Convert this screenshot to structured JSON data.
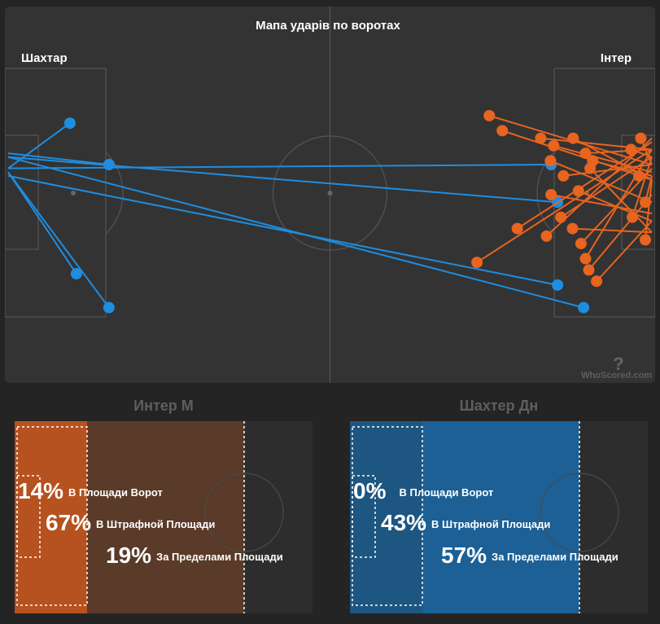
{
  "pitch": {
    "title": "Мапа ударів по воротах",
    "left_team": "Шахтар",
    "right_team": "Інтер",
    "watermark": "WhoScored.com"
  },
  "chart_data": {
    "type": "scatter",
    "title": "Мапа ударів по воротах",
    "series": [
      {
        "name": "Шахтар",
        "color": "#1f8de0",
        "shots": [
          {
            "x": 89,
            "y": 80,
            "tx": 0.5,
            "ty": 40
          },
          {
            "x": 85,
            "y": 74,
            "tx": 0.5,
            "ty": 45
          },
          {
            "x": 85,
            "y": 52,
            "tx": 0.5,
            "ty": 40
          },
          {
            "x": 84,
            "y": 42,
            "tx": 0.5,
            "ty": 43
          },
          {
            "x": 16,
            "y": 80,
            "tx": 0.5,
            "ty": 44
          },
          {
            "x": 16,
            "y": 42,
            "tx": 0.5,
            "ty": 39
          },
          {
            "x": 10,
            "y": 31,
            "tx": 0.5,
            "ty": 43
          },
          {
            "x": 11,
            "y": 71,
            "tx": 0.5,
            "ty": 44
          }
        ]
      },
      {
        "name": "Інтер",
        "color": "#e8641f",
        "shots": [
          {
            "x": 72.6,
            "y": 68,
            "tx": 99.5,
            "ty": 38
          },
          {
            "x": 83.3,
            "y": 61,
            "tx": 99.5,
            "ty": 35
          },
          {
            "x": 85.5,
            "y": 56,
            "tx": 99.5,
            "ty": 40
          },
          {
            "x": 89.8,
            "y": 70,
            "tx": 99.5,
            "ty": 50
          },
          {
            "x": 91.0,
            "y": 73,
            "tx": 99.5,
            "ty": 57
          },
          {
            "x": 89.3,
            "y": 67,
            "tx": 99.5,
            "ty": 38
          },
          {
            "x": 88.6,
            "y": 63,
            "tx": 99.5,
            "ty": 43
          },
          {
            "x": 87.3,
            "y": 59,
            "tx": 99.5,
            "ty": 60
          },
          {
            "x": 78.8,
            "y": 59,
            "tx": 99.5,
            "ty": 36
          },
          {
            "x": 84.0,
            "y": 50,
            "tx": 99.5,
            "ty": 55
          },
          {
            "x": 88.2,
            "y": 49,
            "tx": 99.5,
            "ty": 57
          },
          {
            "x": 85.9,
            "y": 45,
            "tx": 99.5,
            "ty": 42
          },
          {
            "x": 83.9,
            "y": 41,
            "tx": 99.5,
            "ty": 52
          },
          {
            "x": 90.0,
            "y": 43,
            "tx": 99.5,
            "ty": 60
          },
          {
            "x": 90.4,
            "y": 41,
            "tx": 99.5,
            "ty": 45
          },
          {
            "x": 89.3,
            "y": 39,
            "tx": 99.5,
            "ty": 38
          },
          {
            "x": 84.4,
            "y": 37,
            "tx": 99.5,
            "ty": 44
          },
          {
            "x": 82.4,
            "y": 35,
            "tx": 99.5,
            "ty": 38
          },
          {
            "x": 87.4,
            "y": 35,
            "tx": 99.5,
            "ty": 46
          },
          {
            "x": 96.3,
            "y": 38,
            "tx": 99.5,
            "ty": 40
          },
          {
            "x": 97.8,
            "y": 35,
            "tx": 99.5,
            "ty": 42
          },
          {
            "x": 97.5,
            "y": 45,
            "tx": 99.5,
            "ty": 46
          },
          {
            "x": 98.5,
            "y": 52,
            "tx": 99.5,
            "ty": 45
          },
          {
            "x": 96.5,
            "y": 56,
            "tx": 99.5,
            "ty": 40
          },
          {
            "x": 98.5,
            "y": 62,
            "tx": 99.5,
            "ty": 46
          },
          {
            "x": 76.5,
            "y": 33,
            "tx": 99.5,
            "ty": 46
          },
          {
            "x": 74.5,
            "y": 29,
            "tx": 99.5,
            "ty": 42
          }
        ]
      }
    ]
  },
  "zones": [
    {
      "team": "Интер М",
      "color": "#b5521f",
      "mid_color": "#5a3a29",
      "six_label": "В Площади Ворот",
      "six_pct": "14%",
      "box_label": "В Штрафной Площади",
      "box_pct": "67%",
      "out_label": "За Пределами Площади",
      "out_pct": "19%"
    },
    {
      "team": "Шахтер Дн",
      "color": "#1d5681",
      "mid_color": "#1c6095",
      "six_label": "В Площади Ворот",
      "six_pct": "0%",
      "box_label": "В Штрафной Площади",
      "box_pct": "43%",
      "out_label": "За Пределами Площади",
      "out_pct": "57%"
    }
  ]
}
